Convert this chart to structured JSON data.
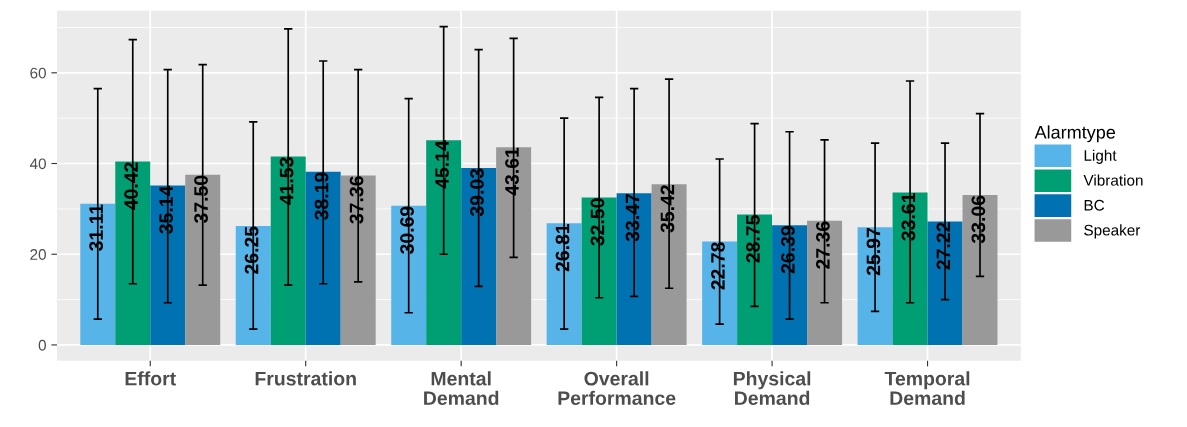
{
  "chart_data": {
    "type": "bar",
    "categories": [
      "Effort",
      "Frustration",
      "Mental\nDemand",
      "Overall\nPerformance",
      "Physical\nDemand",
      "Temporal\nDemand"
    ],
    "legend_title": "Alarmtype",
    "legend": "right",
    "grid": true,
    "ylim": [
      -3.5,
      73.7
    ],
    "yticks": [
      0,
      20,
      40,
      60
    ],
    "series": [
      {
        "name": "Light",
        "color": "#56b4e9",
        "values": [
          31.11,
          26.25,
          30.69,
          26.81,
          22.78,
          25.97
        ],
        "value_labels": [
          "31.11",
          "26.25",
          "30.69",
          "26.81",
          "22.78",
          "25.97"
        ],
        "errors": [
          [
            5.7,
            56.5
          ],
          [
            3.5,
            49.2
          ],
          [
            7.1,
            54.3
          ],
          [
            3.5,
            50.0
          ],
          [
            4.6,
            41.0
          ],
          [
            7.4,
            44.5
          ]
        ]
      },
      {
        "name": "Vibration",
        "color": "#009e73",
        "values": [
          40.42,
          41.53,
          45.14,
          32.5,
          28.75,
          33.61
        ],
        "value_labels": [
          "40.42",
          "41.53",
          "45.14",
          "32.50",
          "28.75",
          "33.61"
        ],
        "errors": [
          [
            13.5,
            67.3
          ],
          [
            13.2,
            69.7
          ],
          [
            20.0,
            70.2
          ],
          [
            10.4,
            54.6
          ],
          [
            8.5,
            48.8
          ],
          [
            9.3,
            58.2
          ]
        ]
      },
      {
        "name": "BC",
        "color": "#0072b2",
        "values": [
          35.14,
          38.19,
          39.03,
          33.47,
          26.39,
          27.22
        ],
        "value_labels": [
          "35.14",
          "38.19",
          "39.03",
          "33.47",
          "26.39",
          "27.22"
        ],
        "errors": [
          [
            9.3,
            60.7
          ],
          [
            13.5,
            62.6
          ],
          [
            12.9,
            65.1
          ],
          [
            10.7,
            56.5
          ],
          [
            5.7,
            47.0
          ],
          [
            10.0,
            44.5
          ]
        ]
      },
      {
        "name": "Speaker",
        "color": "#999999",
        "values": [
          37.5,
          37.36,
          43.61,
          35.42,
          27.36,
          33.06
        ],
        "value_labels": [
          "37.50",
          "37.36",
          "43.61",
          "35.42",
          "27.36",
          "33.06"
        ],
        "errors": [
          [
            13.2,
            61.8
          ],
          [
            13.9,
            60.7
          ],
          [
            19.3,
            67.6
          ],
          [
            12.5,
            58.6
          ],
          [
            9.3,
            45.2
          ],
          [
            15.1,
            51.0
          ]
        ]
      }
    ]
  }
}
